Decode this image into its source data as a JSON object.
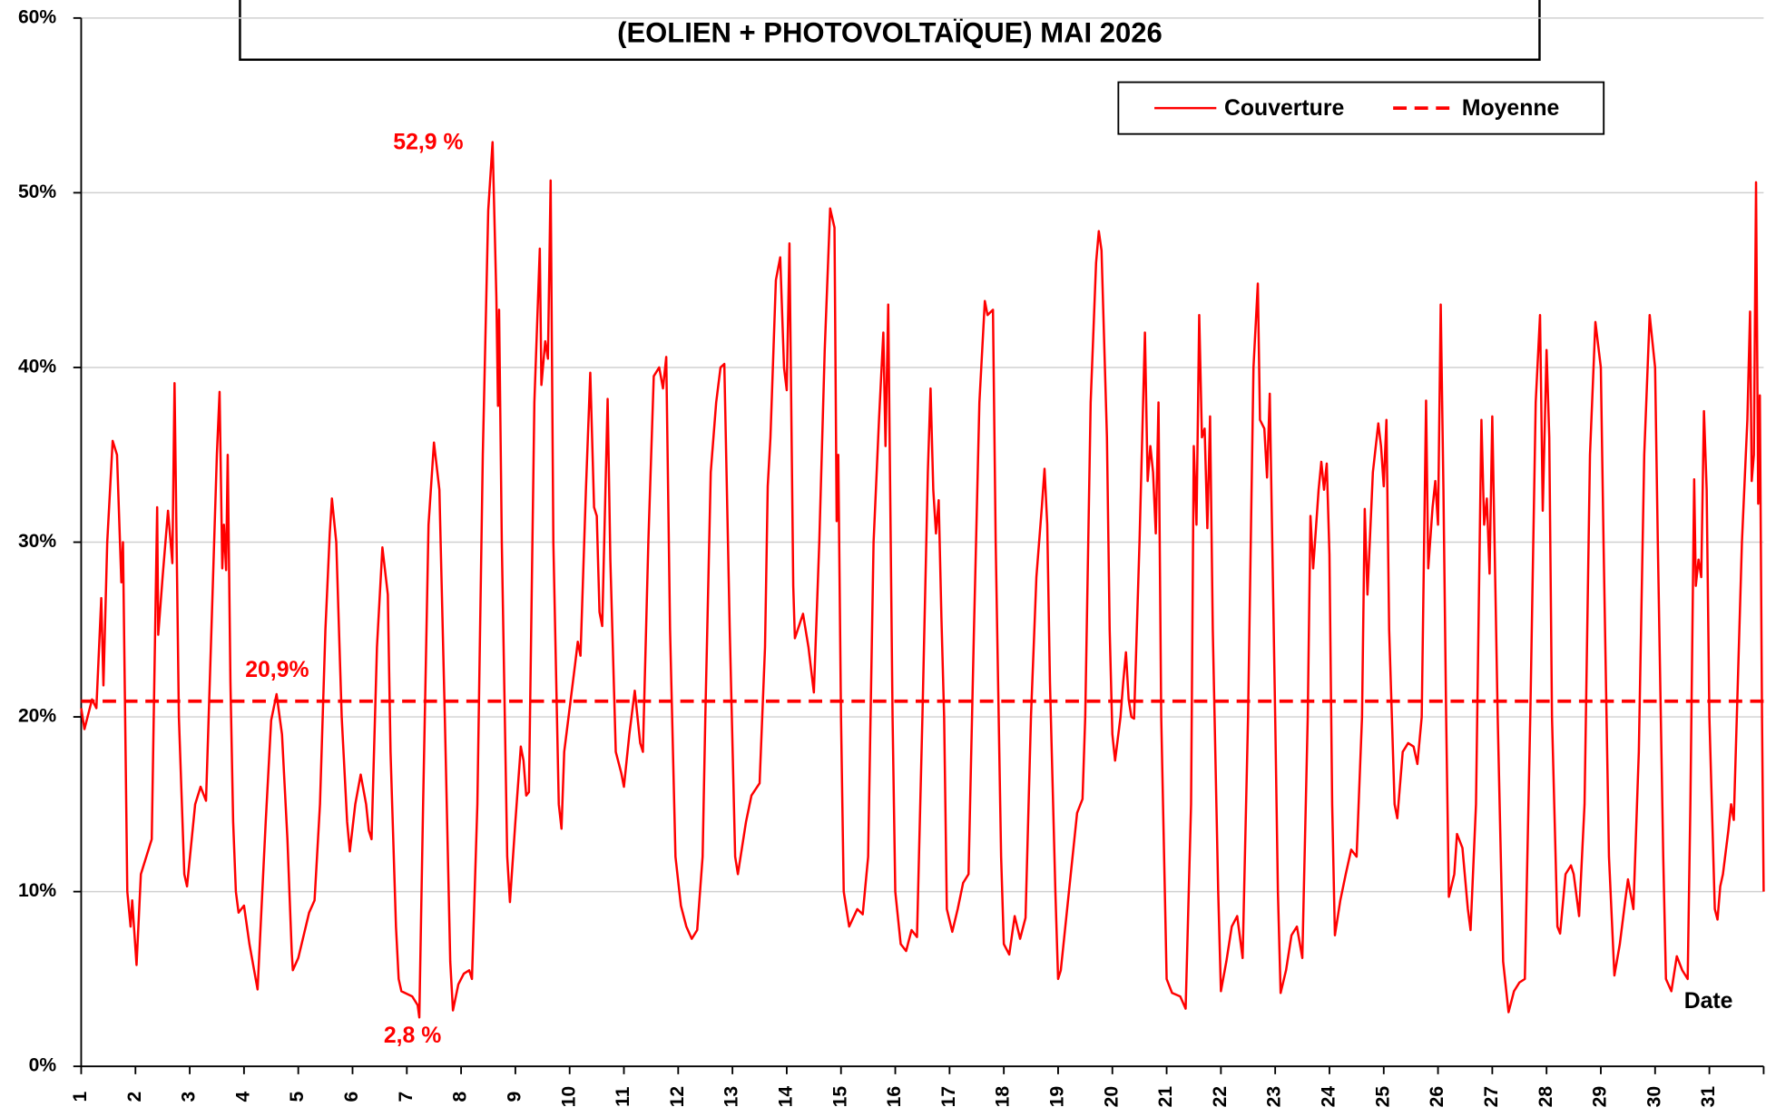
{
  "chart_data": {
    "type": "line",
    "title": "(EOLIEN + PHOTOVOLTAÏQUE) MAI 2026",
    "x_label": "Date",
    "x": [
      1.0,
      1.06,
      1.2,
      1.28,
      1.37,
      1.41,
      1.48,
      1.58,
      1.66,
      1.74,
      1.77,
      1.85,
      1.91,
      1.94,
      2.02,
      2.1,
      2.3,
      2.4,
      2.42,
      2.5,
      2.6,
      2.68,
      2.72,
      2.8,
      2.9,
      2.95,
      3.1,
      3.2,
      3.3,
      3.4,
      3.5,
      3.55,
      3.6,
      3.63,
      3.67,
      3.7,
      3.75,
      3.8,
      3.85,
      3.9,
      4.0,
      4.1,
      4.25,
      4.4,
      4.5,
      4.6,
      4.7,
      4.8,
      4.88,
      4.9,
      5.0,
      5.1,
      5.2,
      5.3,
      5.4,
      5.5,
      5.58,
      5.62,
      5.7,
      5.8,
      5.9,
      5.95,
      6.05,
      6.15,
      6.25,
      6.3,
      6.35,
      6.45,
      6.55,
      6.65,
      6.7,
      6.8,
      6.85,
      6.9,
      7.1,
      7.2,
      7.23,
      7.3,
      7.4,
      7.5,
      7.6,
      7.7,
      7.8,
      7.85,
      7.95,
      8.05,
      8.15,
      8.2,
      8.3,
      8.4,
      8.5,
      8.58,
      8.65,
      8.68,
      8.7,
      8.75,
      8.85,
      8.9,
      9.0,
      9.1,
      9.15,
      9.2,
      9.25,
      9.35,
      9.45,
      9.48,
      9.55,
      9.6,
      9.65,
      9.7,
      9.8,
      9.85,
      9.9,
      10.0,
      10.1,
      10.15,
      10.2,
      10.3,
      10.38,
      10.45,
      10.5,
      10.55,
      10.6,
      10.7,
      10.75,
      10.85,
      10.95,
      11.0,
      11.1,
      11.2,
      11.3,
      11.35,
      11.45,
      11.55,
      11.65,
      11.72,
      11.78,
      11.85,
      11.95,
      12.05,
      12.15,
      12.25,
      12.35,
      12.45,
      12.5,
      12.6,
      12.7,
      12.78,
      12.85,
      12.95,
      13.05,
      13.1,
      13.25,
      13.35,
      13.5,
      13.6,
      13.65,
      13.7,
      13.8,
      13.88,
      13.95,
      14.0,
      14.05,
      14.12,
      14.15,
      14.3,
      14.4,
      14.5,
      14.6,
      14.7,
      14.8,
      14.88,
      14.92,
      14.95,
      15.0,
      15.05,
      15.15,
      15.3,
      15.4,
      15.5,
      15.6,
      15.7,
      15.78,
      15.82,
      15.87,
      15.95,
      16.0,
      16.1,
      16.2,
      16.3,
      16.4,
      16.5,
      16.6,
      16.65,
      16.7,
      16.75,
      16.8,
      16.85,
      16.9,
      16.95,
      17.05,
      17.15,
      17.25,
      17.35,
      17.45,
      17.55,
      17.65,
      17.7,
      17.8,
      17.85,
      17.95,
      18.0,
      18.1,
      18.2,
      18.3,
      18.4,
      18.5,
      18.6,
      18.7,
      18.75,
      18.8,
      18.85,
      18.95,
      19.0,
      19.05,
      19.2,
      19.35,
      19.45,
      19.5,
      19.6,
      19.7,
      19.75,
      19.8,
      19.9,
      19.95,
      20.0,
      20.05,
      20.15,
      20.2,
      20.25,
      20.3,
      20.35,
      20.4,
      20.5,
      20.6,
      20.65,
      20.7,
      20.75,
      20.8,
      20.85,
      20.9,
      21.0,
      21.1,
      21.25,
      21.35,
      21.45,
      21.5,
      21.55,
      21.6,
      21.65,
      21.7,
      21.75,
      21.8,
      21.85,
      21.95,
      22.0,
      22.1,
      22.2,
      22.3,
      22.4,
      22.5,
      22.6,
      22.68,
      22.72,
      22.8,
      22.85,
      22.9,
      23.0,
      23.05,
      23.1,
      23.2,
      23.3,
      23.4,
      23.5,
      23.6,
      23.65,
      23.7,
      23.8,
      23.85,
      23.9,
      23.95,
      24.0,
      24.05,
      24.1,
      24.2,
      24.3,
      24.4,
      24.5,
      24.6,
      24.65,
      24.7,
      24.8,
      24.9,
      24.95,
      25.0,
      25.05,
      25.1,
      25.2,
      25.25,
      25.35,
      25.45,
      25.55,
      25.62,
      25.7,
      25.78,
      25.82,
      25.9,
      25.95,
      26.0,
      26.05,
      26.1,
      26.15,
      26.2,
      26.3,
      26.35,
      26.45,
      26.55,
      26.6,
      26.7,
      26.8,
      26.85,
      26.9,
      26.95,
      27.0,
      27.1,
      27.2,
      27.3,
      27.4,
      27.5,
      27.6,
      27.7,
      27.8,
      27.88,
      27.93,
      28.0,
      28.05,
      28.1,
      28.2,
      28.25,
      28.35,
      28.45,
      28.5,
      28.6,
      28.7,
      28.8,
      28.9,
      29.0,
      29.05,
      29.15,
      29.25,
      29.35,
      29.45,
      29.5,
      29.6,
      29.7,
      29.8,
      29.9,
      30.0,
      30.05,
      30.15,
      30.2,
      30.3,
      30.4,
      30.5,
      30.6,
      30.65,
      30.72,
      30.75,
      30.8,
      30.85,
      30.9,
      30.95,
      31.0,
      31.1,
      31.15,
      31.2,
      31.25,
      31.35,
      31.4,
      31.45,
      31.6,
      31.7,
      31.75,
      31.78,
      31.82,
      31.86,
      31.9,
      31.93,
      31.97,
      32.0
    ],
    "series": [
      {
        "name": "Couverture",
        "color": "#ff0000",
        "values": [
          20.5,
          19.3,
          21,
          20.5,
          26.8,
          21.8,
          30,
          35.8,
          35,
          27.7,
          30,
          10,
          8,
          9.5,
          5.8,
          11,
          13,
          32,
          24.7,
          28,
          31.8,
          28.8,
          39.1,
          20,
          11,
          10.3,
          15,
          16,
          15.2,
          25,
          35,
          38.6,
          28.5,
          31,
          28.4,
          35,
          22,
          14,
          10,
          8.8,
          9.2,
          7,
          4.4,
          14,
          19.8,
          21.3,
          19,
          13,
          6.5,
          5.5,
          6.2,
          7.5,
          8.8,
          9.5,
          15,
          25,
          30.5,
          32.5,
          30,
          20,
          14,
          12.3,
          15,
          16.7,
          15,
          13.5,
          13,
          24,
          29.7,
          27,
          18,
          8,
          5,
          4.3,
          4,
          3.5,
          2.8,
          15,
          31,
          35.7,
          33,
          20,
          6,
          3.2,
          4.7,
          5.3,
          5.5,
          5,
          15,
          35,
          49,
          52.9,
          44,
          37.8,
          43.3,
          30,
          12,
          9.4,
          14,
          18.3,
          17.5,
          15.5,
          15.7,
          38,
          46.8,
          39,
          41.5,
          40.5,
          50.7,
          30,
          15,
          13.6,
          18,
          20.5,
          23,
          24.3,
          23.5,
          33,
          39.7,
          32,
          31.5,
          26,
          25.2,
          38.2,
          29,
          18,
          16.8,
          16,
          19,
          21.5,
          18.5,
          18,
          30,
          39.5,
          40,
          38.8,
          40.6,
          25,
          12,
          9.2,
          8,
          7.3,
          7.8,
          12,
          20,
          34,
          38,
          40,
          40.2,
          25,
          12,
          11,
          14,
          15.5,
          16.2,
          24,
          33.2,
          36,
          45,
          46.3,
          40,
          38.7,
          47.1,
          27.5,
          24.5,
          25.9,
          24,
          21.4,
          30,
          41,
          49.1,
          48,
          31.2,
          35,
          20,
          10,
          8,
          9,
          8.7,
          12,
          30,
          37,
          42,
          35.5,
          43.6,
          20,
          10,
          7,
          6.6,
          7.8,
          7.4,
          20,
          34,
          38.8,
          33,
          30.5,
          32.4,
          25.7,
          20,
          9,
          7.7,
          9,
          10.5,
          11,
          25,
          38,
          43.8,
          43,
          43.3,
          30,
          12,
          7,
          6.4,
          8.6,
          7.3,
          8.5,
          20,
          28,
          32,
          34.2,
          31,
          22,
          10,
          5,
          5.5,
          10,
          14.5,
          15.3,
          20,
          38,
          46,
          47.8,
          46.7,
          36,
          25,
          19,
          17.5,
          20,
          22,
          23.7,
          21,
          20,
          19.9,
          30,
          42,
          33.5,
          35.5,
          34,
          30.5,
          38,
          20,
          5,
          4.2,
          4,
          3.3,
          15,
          35.5,
          31,
          43,
          36,
          36.5,
          30.8,
          37.2,
          25,
          10,
          4.3,
          6,
          8,
          8.6,
          6.2,
          20,
          40,
          44.8,
          37,
          36.5,
          33.7,
          38.5,
          20,
          10,
          4.2,
          5.5,
          7.5,
          8,
          6.2,
          20,
          31.5,
          28.5,
          33,
          34.6,
          33,
          34.5,
          29.3,
          15,
          7.5,
          9.5,
          11,
          12.4,
          12,
          20,
          31.9,
          27,
          34,
          36.8,
          35.5,
          33.2,
          37,
          25,
          15,
          14.2,
          18,
          18.5,
          18.3,
          17.3,
          20,
          38.1,
          28.5,
          32,
          33.5,
          31,
          43.6,
          33,
          20,
          9.7,
          11,
          13.3,
          12.5,
          9,
          7.8,
          15,
          37,
          31,
          32.5,
          28.2,
          37.2,
          20,
          6,
          3.1,
          4.3,
          4.8,
          5,
          20,
          38,
          43,
          31.8,
          41,
          36,
          20,
          8,
          7.6,
          11,
          11.5,
          11,
          8.6,
          15,
          35,
          42.6,
          40,
          30,
          12,
          5.2,
          7,
          9.5,
          10.7,
          9,
          18,
          35,
          43,
          40,
          30,
          12,
          5,
          4.3,
          6.3,
          5.5,
          5,
          15,
          33.6,
          27.5,
          29,
          28,
          37.5,
          33,
          20,
          9,
          8.4,
          10.3,
          11,
          13.5,
          15,
          14.1,
          30,
          37,
          43.2,
          33.5,
          35,
          50.6,
          32.2,
          38.4,
          20,
          10
        ]
      }
    ],
    "mean": {
      "name": "Moyenne",
      "value": 20.9,
      "label": "20,9%",
      "color": "#ff0000",
      "dashed": true
    },
    "annotations": [
      {
        "text": "52,9 %",
        "x": 8.58,
        "y": 52.9
      },
      {
        "text": "2,8 %",
        "x": 7.23,
        "y": 2.8
      }
    ],
    "xlim": [
      1,
      32
    ],
    "xticks": [
      1,
      2,
      3,
      4,
      5,
      6,
      7,
      8,
      9,
      10,
      11,
      12,
      13,
      14,
      15,
      16,
      17,
      18,
      19,
      20,
      21,
      22,
      23,
      24,
      25,
      26,
      27,
      28,
      29,
      30,
      31
    ],
    "ylim": [
      0,
      60
    ],
    "yticks": [
      {
        "value": 0,
        "label": "0%"
      },
      {
        "value": 10,
        "label": "10%"
      },
      {
        "value": 20,
        "label": "20%"
      },
      {
        "value": 30,
        "label": "30%"
      },
      {
        "value": 40,
        "label": "40%"
      },
      {
        "value": 50,
        "label": "50%"
      },
      {
        "value": 60,
        "label": "60%"
      }
    ],
    "grid": true,
    "legend": "top-right"
  }
}
